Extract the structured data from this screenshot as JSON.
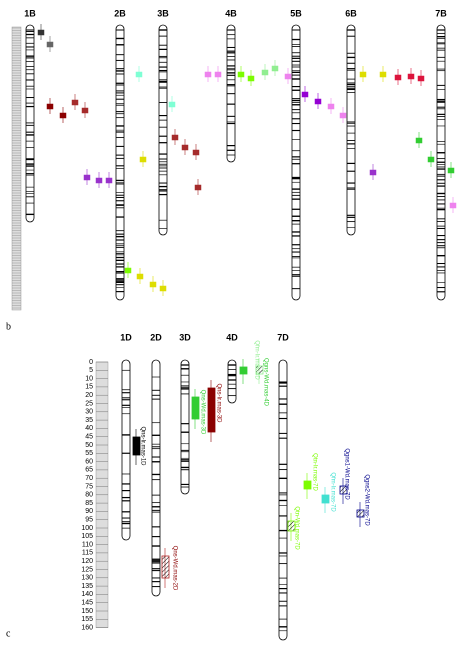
{
  "panel_b": {
    "label": "b",
    "chromosomes": [
      "1B",
      "2B",
      "3B",
      "4B",
      "5B",
      "6B",
      "7B"
    ]
  },
  "panel_c": {
    "label": "c",
    "chromosomes": [
      "1D",
      "2D",
      "3D",
      "4D",
      "7D"
    ],
    "ruler_ticks": [
      0,
      5,
      10,
      15,
      20,
      25,
      30,
      35,
      40,
      45,
      50,
      55,
      60,
      65,
      70,
      75,
      80,
      85,
      90,
      95,
      100,
      105,
      110,
      115,
      120,
      125,
      130,
      135,
      140,
      145,
      150,
      155,
      160
    ],
    "qtls": [
      {
        "label": "Qns-Ir.mas-1D"
      },
      {
        "label": "Qns-Wd.mas-2D"
      },
      {
        "label": "Qns-Wd.mas-3D"
      },
      {
        "label": "Qns-Ir.mas-3D"
      },
      {
        "label": "Qgns-Wd.mas-4D"
      },
      {
        "label": "Qfm-Ir.mas-4D"
      },
      {
        "label": "Qtn-Ir.mas-7D"
      },
      {
        "label": "Qfm-Ir.mas-7D"
      },
      {
        "label": "Qgns1-Wd.mas-7D"
      },
      {
        "label": "Qgns2-Wd.mas-7D"
      },
      {
        "label": "Qtn-Wd.mas-7D"
      }
    ]
  }
}
